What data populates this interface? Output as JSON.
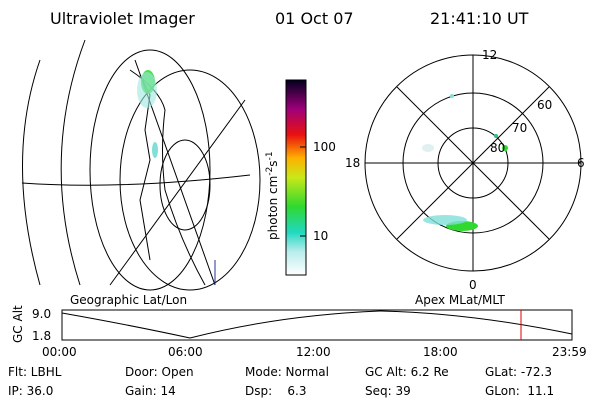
{
  "header": {
    "instrument": "Ultraviolet Imager",
    "date": "01 Oct 07",
    "time": "21:41:10 UT"
  },
  "colorbar": {
    "label": "photon cm",
    "exp1": "-2",
    "mid": "s",
    "exp2": "-1",
    "ticks": [
      "100",
      "10"
    ]
  },
  "polar": {
    "top": "12",
    "bottom": "0",
    "left": "18",
    "right": "6",
    "rings": [
      "60",
      "70",
      "80"
    ]
  },
  "altitude": {
    "label": "GC Alt",
    "ticks": [
      "9.0",
      "1.8"
    ],
    "left_title": "Geographic Lat/Lon",
    "right_title": "Apex MLat/MLT",
    "times": [
      "00:00",
      "06:00",
      "12:00",
      "18:00",
      "23:59"
    ]
  },
  "status": {
    "rows": [
      [
        "Flt: LBHL",
        "Door: Open",
        "Mode: Normal",
        "GC Alt: 6.2 Re",
        "GLat: -72.3"
      ],
      [
        "IP: 36.0",
        "Gain: 14",
        "Dsp:    6.3",
        "Seq: 39",
        "GLon:  11.1"
      ]
    ]
  }
}
